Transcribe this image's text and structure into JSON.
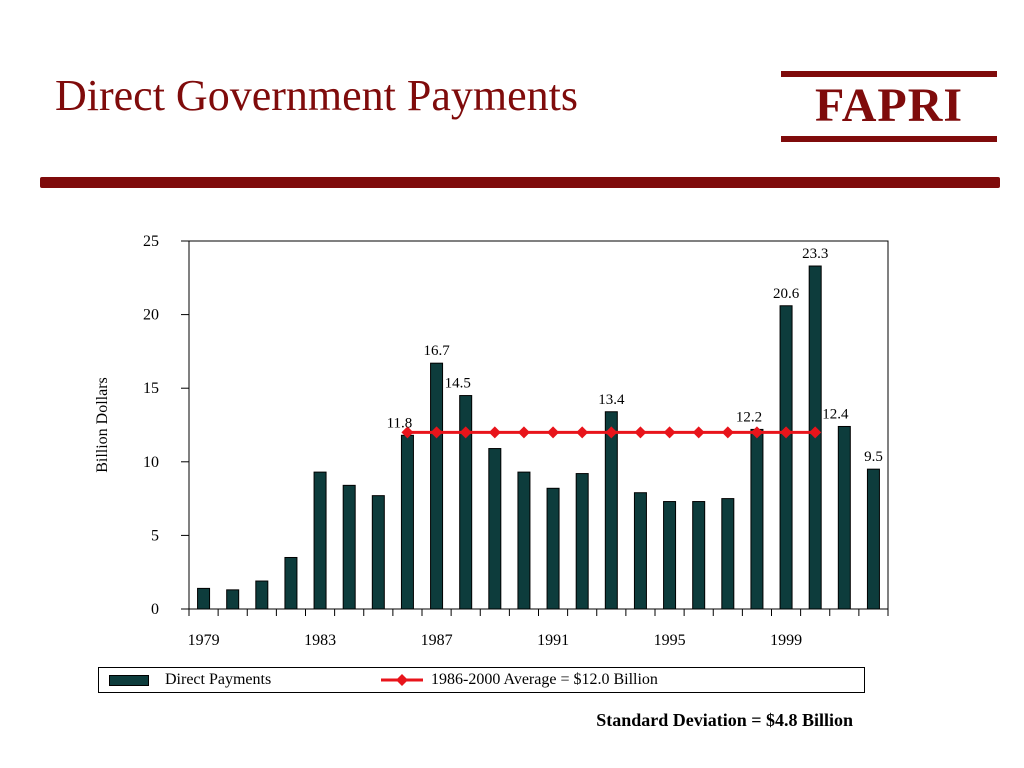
{
  "slide": {
    "title": "Direct Government Payments",
    "logo": "FAPRI",
    "footnote": "Standard Deviation = $4.8 Billion"
  },
  "colors": {
    "brand": "#7f0b0b",
    "bar": "#0d3c3c",
    "average_line": "#e8141b"
  },
  "chart_data": {
    "type": "bar",
    "ylabel": "Billion Dollars",
    "ylim": [
      0,
      25
    ],
    "yticks": [
      0,
      5,
      10,
      15,
      20,
      25
    ],
    "xtick_labels": [
      "1979",
      "1983",
      "1987",
      "1991",
      "1995",
      "1999"
    ],
    "x": [
      1979,
      1980,
      1981,
      1982,
      1983,
      1984,
      1985,
      1986,
      1987,
      1988,
      1989,
      1990,
      1991,
      1992,
      1993,
      1994,
      1995,
      1996,
      1997,
      1998,
      1999,
      2000,
      2001,
      2002
    ],
    "series": [
      {
        "name": "Direct Payments",
        "values": [
          1.4,
          1.3,
          1.9,
          3.5,
          9.3,
          8.4,
          7.7,
          11.8,
          16.7,
          14.5,
          10.9,
          9.3,
          8.2,
          9.2,
          13.4,
          7.9,
          7.3,
          7.3,
          7.5,
          12.2,
          20.6,
          23.3,
          12.4,
          9.5
        ]
      },
      {
        "name": "1986-2000 Average = $12.0 Billion",
        "type": "line",
        "x": [
          1986,
          1987,
          1988,
          1989,
          1990,
          1991,
          1992,
          1993,
          1994,
          1995,
          1996,
          1997,
          1998,
          1999,
          2000
        ],
        "values": [
          12.0,
          12.0,
          12.0,
          12.0,
          12.0,
          12.0,
          12.0,
          12.0,
          12.0,
          12.0,
          12.0,
          12.0,
          12.0,
          12.0,
          12.0
        ]
      }
    ],
    "data_labels": [
      {
        "x": 1986,
        "text": "11.8"
      },
      {
        "x": 1987,
        "text": "16.7"
      },
      {
        "x": 1988,
        "text": "14.5"
      },
      {
        "x": 1993,
        "text": "13.4"
      },
      {
        "x": 1998,
        "text": "12.2"
      },
      {
        "x": 1999,
        "text": "20.6"
      },
      {
        "x": 2000,
        "text": "23.3"
      },
      {
        "x": 2001,
        "text": "12.4"
      },
      {
        "x": 2002,
        "text": "9.5"
      }
    ],
    "legend": "bottom"
  }
}
